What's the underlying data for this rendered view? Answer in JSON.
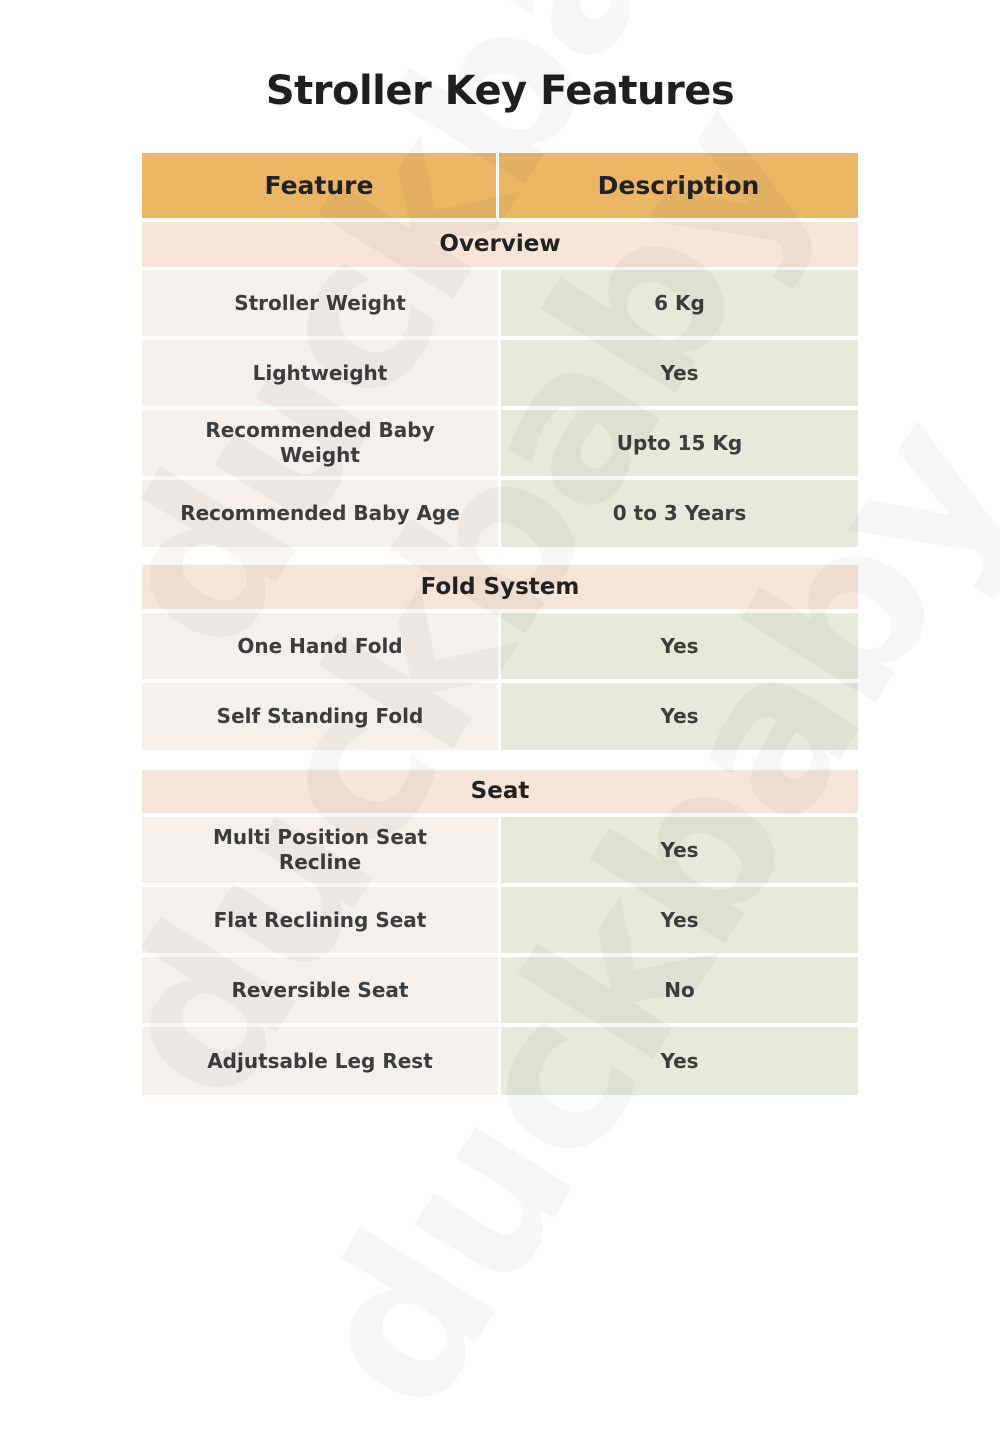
{
  "title": "Stroller Key Features",
  "watermark": "duckbaby",
  "colors": {
    "header": "#ebb766",
    "section": "#f7e5d7",
    "feature_cell": "#f5f0ec",
    "description_cell": "#e6eadc"
  },
  "table": {
    "headers": [
      "Feature",
      "Description"
    ],
    "sections": [
      {
        "name": "Overview",
        "rows": [
          {
            "feature": "Stroller Weight",
            "description": "6 Kg"
          },
          {
            "feature": "Lightweight",
            "description": "Yes"
          },
          {
            "feature": "Recommended Baby Weight",
            "description": "Upto 15 Kg"
          },
          {
            "feature": "Recommended Baby Age",
            "description": "0 to 3 Years"
          }
        ]
      },
      {
        "name": "Fold System",
        "rows": [
          {
            "feature": "One Hand Fold",
            "description": "Yes"
          },
          {
            "feature": "Self Standing Fold",
            "description": "Yes"
          }
        ]
      },
      {
        "name": "Seat",
        "rows": [
          {
            "feature": "Multi Position Seat Recline",
            "description": "Yes"
          },
          {
            "feature": "Flat Reclining Seat",
            "description": "Yes"
          },
          {
            "feature": "Reversible Seat",
            "description": "No"
          },
          {
            "feature": "Adjutsable Leg Rest",
            "description": "Yes"
          }
        ]
      }
    ]
  }
}
